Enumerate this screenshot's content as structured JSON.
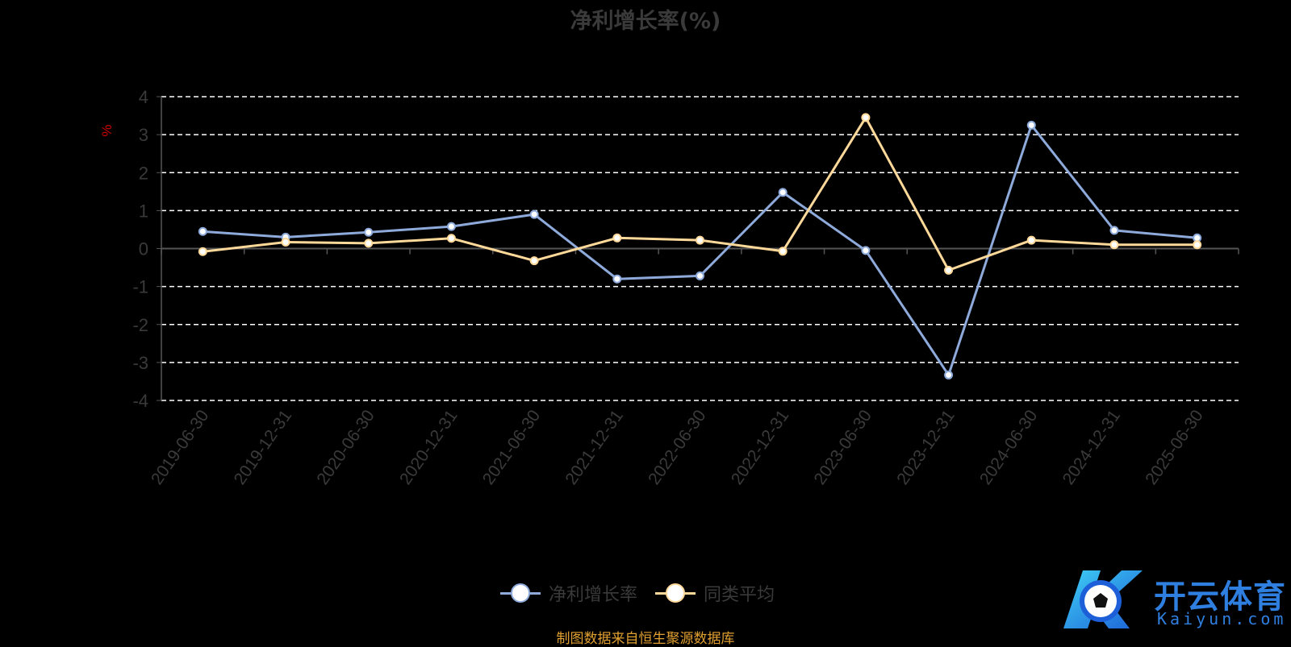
{
  "title": "净利增长率(%)",
  "footer": "制图数据来自恒生聚源数据库",
  "logo": {
    "cn": "开云体育",
    "en": "Kaiyun.com",
    "mark": "K"
  },
  "colors": {
    "series1": "#8eaadb",
    "series2": "#ffd99a",
    "grid": "#ffffff",
    "axis": "#555555",
    "tick_text": "#3a3a3a",
    "unit_text": "#cc0000"
  },
  "chart_data": {
    "type": "line",
    "title": "净利增长率(%)",
    "ylabel": "%",
    "xlabel": "",
    "ylim": [
      -4,
      4
    ],
    "yticks": [
      4,
      3,
      2,
      1,
      0,
      -1,
      -2,
      -3,
      -4
    ],
    "grid": true,
    "legend_position": "bottom",
    "categories": [
      "2019-06-30",
      "2019-12-31",
      "2020-06-30",
      "2020-12-31",
      "2021-06-30",
      "2021-12-31",
      "2022-06-30",
      "2022-12-31",
      "2023-06-30",
      "2023-12-31",
      "2024-06-30",
      "2024-12-31",
      "2025-06-30"
    ],
    "series": [
      {
        "name": "净利增长率",
        "color": "#8eaadb",
        "values": [
          0.45,
          0.3,
          0.43,
          0.58,
          0.9,
          -0.8,
          -0.72,
          1.48,
          -0.05,
          -3.33,
          3.25,
          0.48,
          0.28
        ]
      },
      {
        "name": "同类平均",
        "color": "#ffd99a",
        "values": [
          -0.08,
          0.17,
          0.14,
          0.27,
          -0.32,
          0.28,
          0.22,
          -0.07,
          3.45,
          -0.57,
          0.22,
          0.1,
          0.1
        ]
      }
    ]
  }
}
